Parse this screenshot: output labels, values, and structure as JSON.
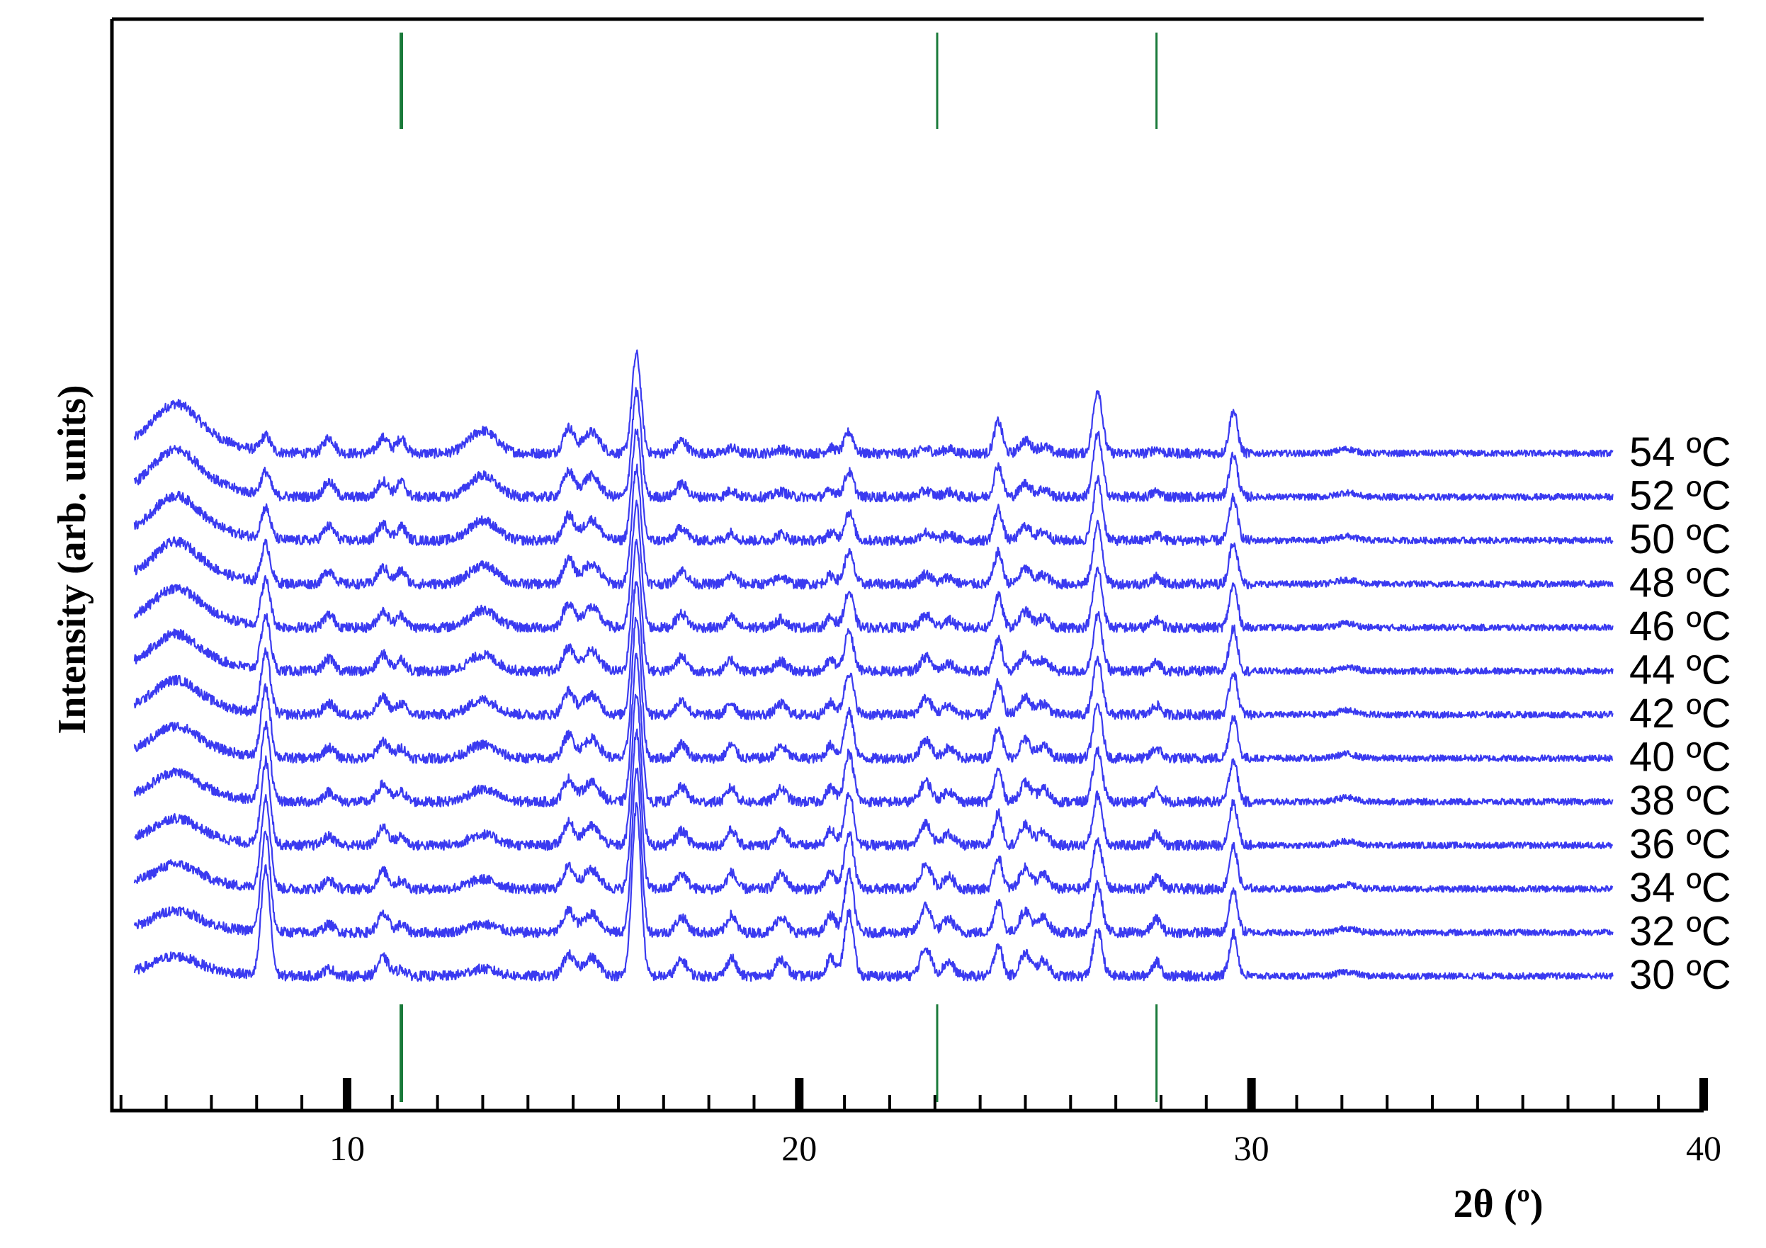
{
  "chart_data": {
    "type": "line",
    "title": "",
    "xlabel": "2θ (º)",
    "ylabel": "Intensity (arb. units)",
    "xlim": [
      4.8,
      40
    ],
    "x_major_ticks": [
      10,
      20,
      30,
      40
    ],
    "x_minor_step": 1,
    "y_scale": "arbitrary (stacked traces, no ticks)",
    "grid": false,
    "legend": "none (series labelled at right end of each trace)",
    "colors": {
      "trace": "#3a3af0",
      "marker": "#1a7a3a",
      "axis": "#000000"
    },
    "vertical_markers": [
      11.2,
      23.05,
      27.9
    ],
    "x_range_of_traces": [
      5.3,
      38
    ],
    "peaks_low_T": [
      8.2,
      10.8,
      14.9,
      15.4,
      16.4,
      17.4,
      18.5,
      19.6,
      20.9,
      21.1,
      22.8,
      24.4,
      25.0,
      26.6,
      27.9,
      29.6
    ],
    "peaks_high_T": [
      6.2,
      10.8,
      11.2,
      13.0,
      14.9,
      15.5,
      16.4,
      17.4,
      21.0,
      24.4,
      26.5,
      29.6
    ],
    "series": [
      {
        "name": "54 ºC",
        "temperature_C": 54
      },
      {
        "name": "52 ºC",
        "temperature_C": 52
      },
      {
        "name": "50 ºC",
        "temperature_C": 50
      },
      {
        "name": "48 ºC",
        "temperature_C": 48
      },
      {
        "name": "46 ºC",
        "temperature_C": 46
      },
      {
        "name": "44 ºC",
        "temperature_C": 44
      },
      {
        "name": "42 ºC",
        "temperature_C": 42
      },
      {
        "name": "40 ºC",
        "temperature_C": 40
      },
      {
        "name": "38 ºC",
        "temperature_C": 38
      },
      {
        "name": "36 ºC",
        "temperature_C": 36
      },
      {
        "name": "34 ºC",
        "temperature_C": 34
      },
      {
        "name": "32 ºC",
        "temperature_C": 32
      },
      {
        "name": "30 ºC",
        "temperature_C": 30
      }
    ]
  }
}
